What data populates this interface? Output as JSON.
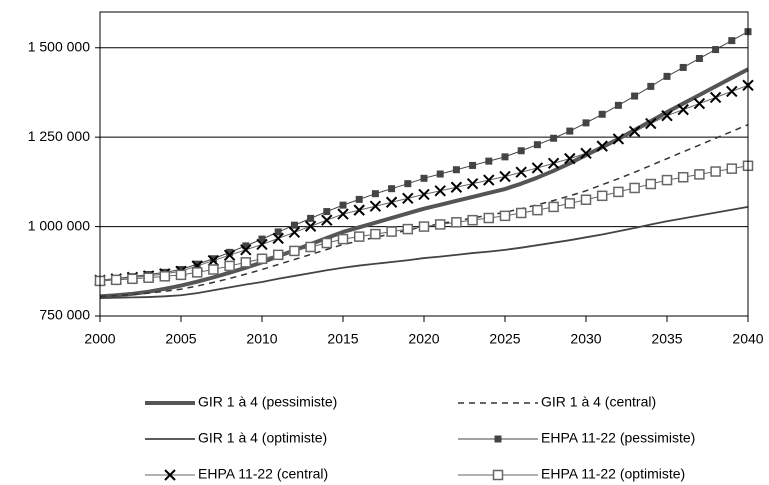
{
  "chart_data": {
    "type": "line",
    "x": [
      2000,
      2001,
      2002,
      2003,
      2004,
      2005,
      2006,
      2007,
      2008,
      2009,
      2010,
      2011,
      2012,
      2013,
      2014,
      2015,
      2016,
      2017,
      2018,
      2019,
      2020,
      2021,
      2022,
      2023,
      2024,
      2025,
      2026,
      2027,
      2028,
      2029,
      2030,
      2031,
      2032,
      2033,
      2034,
      2035,
      2036,
      2037,
      2038,
      2039,
      2040
    ],
    "xlim": [
      2000,
      2040
    ],
    "xticks": [
      2000,
      2005,
      2010,
      2015,
      2020,
      2025,
      2030,
      2035,
      2040
    ],
    "ylim": [
      750000,
      1600000
    ],
    "yticks": [
      {
        "value": 750000,
        "label": "750 000"
      },
      {
        "value": 1000000,
        "label": "1 000 000"
      },
      {
        "value": 1250000,
        "label": "1 250 000"
      },
      {
        "value": 1500000,
        "label": "1 500 000"
      }
    ],
    "grid": true,
    "legend": "bottom",
    "series": [
      {
        "name": "GIR 1 à 4 (pessimiste)",
        "color": "#555555",
        "line_width": 4,
        "dash": "solid",
        "marker": "none",
        "values": [
          805000,
          808000,
          812000,
          818000,
          826000,
          835000,
          846000,
          858000,
          871000,
          885000,
          900000,
          917000,
          934000,
          951000,
          968000,
          985000,
          998000,
          1011000,
          1024000,
          1037000,
          1050000,
          1061000,
          1072000,
          1083000,
          1094000,
          1105000,
          1120000,
          1137000,
          1156000,
          1177000,
          1200000,
          1222000,
          1245000,
          1270000,
          1295000,
          1320000,
          1344000,
          1368000,
          1392000,
          1416000,
          1440000
        ]
      },
      {
        "name": "GIR 1 à 4 (central)",
        "color": "#333333",
        "line_width": 1.5,
        "dash": "dashed",
        "marker": "none",
        "values": [
          805000,
          807000,
          810000,
          814000,
          819000,
          825000,
          834000,
          844000,
          855000,
          867000,
          880000,
          894000,
          908000,
          922000,
          936000,
          950000,
          960000,
          970000,
          980000,
          990000,
          1000000,
          1008000,
          1016000,
          1024000,
          1032000,
          1040000,
          1050000,
          1061000,
          1073000,
          1086000,
          1100000,
          1117000,
          1134000,
          1152000,
          1171000,
          1190000,
          1209000,
          1228000,
          1247000,
          1266000,
          1285000
        ]
      },
      {
        "name": "GIR 1 à 4 (optimiste)",
        "color": "#444444",
        "line_width": 1.8,
        "dash": "solid",
        "marker": "none",
        "values": [
          800000,
          801000,
          802000,
          803000,
          805000,
          808000,
          814000,
          822000,
          830000,
          838000,
          845000,
          854000,
          862000,
          870000,
          878000,
          885000,
          891000,
          896000,
          901000,
          906000,
          912000,
          916000,
          921000,
          926000,
          930000,
          935000,
          941000,
          948000,
          955000,
          962000,
          970000,
          978000,
          987000,
          996000,
          1006000,
          1015000,
          1023000,
          1031000,
          1039000,
          1047000,
          1055000
        ]
      },
      {
        "name": "EHPA 11-22 (pessimiste)",
        "color": "#444444",
        "line_width": 1,
        "dash": "solid",
        "marker": "square",
        "values": [
          850000,
          855000,
          860000,
          866000,
          872000,
          880000,
          895000,
          910000,
          928000,
          946000,
          965000,
          985000,
          1004000,
          1023000,
          1042000,
          1060000,
          1076000,
          1092000,
          1106000,
          1120000,
          1135000,
          1147000,
          1159000,
          1171000,
          1183000,
          1195000,
          1212000,
          1229000,
          1247000,
          1267000,
          1290000,
          1314000,
          1339000,
          1365000,
          1392000,
          1420000,
          1445000,
          1470000,
          1495000,
          1520000,
          1545000
        ]
      },
      {
        "name": "EHPA 11-22 (central)",
        "color": "#666666",
        "line_width": 1,
        "dash": "solid",
        "marker": "x",
        "values": [
          850000,
          854000,
          858000,
          862000,
          868000,
          875000,
          890000,
          905000,
          920000,
          935000,
          950000,
          967000,
          984000,
          1001000,
          1018000,
          1035000,
          1046000,
          1057000,
          1068000,
          1079000,
          1090000,
          1100000,
          1110000,
          1120000,
          1130000,
          1140000,
          1152000,
          1164000,
          1177000,
          1190000,
          1205000,
          1225000,
          1245000,
          1266000,
          1288000,
          1310000,
          1327000,
          1344000,
          1361000,
          1378000,
          1395000
        ]
      },
      {
        "name": "EHPA 11-22 (optimiste)",
        "color": "#666666",
        "line_width": 1,
        "dash": "solid",
        "marker": "open-square",
        "values": [
          848000,
          851000,
          854000,
          857000,
          861000,
          865000,
          872000,
          880000,
          890000,
          900000,
          910000,
          921000,
          932000,
          943000,
          954000,
          965000,
          972000,
          979000,
          986000,
          993000,
          1000000,
          1006000,
          1012000,
          1018000,
          1024000,
          1030000,
          1038000,
          1046000,
          1055000,
          1065000,
          1075000,
          1086000,
          1097000,
          1108000,
          1119000,
          1130000,
          1138000,
          1146000,
          1154000,
          1162000,
          1170000
        ]
      }
    ]
  }
}
